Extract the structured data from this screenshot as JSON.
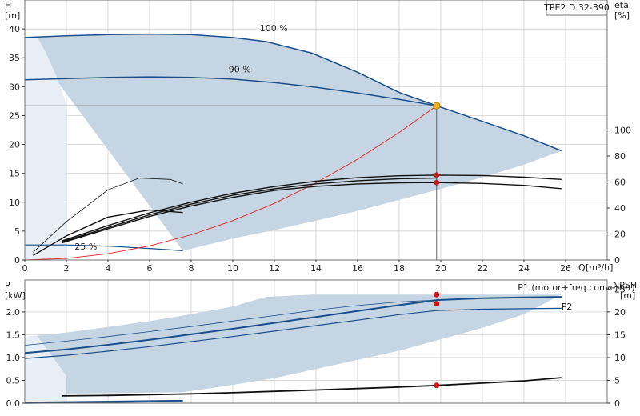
{
  "product_label": "TPE2 D 32-390",
  "colors": {
    "band": "#c6d5e3",
    "band_light": "#e7eef6",
    "pump_curve": "#1b4f8a",
    "black_curve": "#111111",
    "system_curve": "#e02020",
    "operating_point": "#f2b51c",
    "marker": "#e01010"
  },
  "chart_data": [
    {
      "type": "line",
      "name": "head_eta",
      "axis_labels": {
        "left_name": "H",
        "left_unit": "[m]",
        "right_name": "eta",
        "right_unit": "[%]",
        "x_name": "Q",
        "x_unit": "[m³/h]"
      },
      "xlim": [
        0,
        28
      ],
      "ylim": [
        0,
        45
      ],
      "y2lim": [
        0,
        200
      ],
      "x_ticks": [
        0,
        2,
        4,
        6,
        8,
        10,
        12,
        14,
        16,
        18,
        20,
        22,
        24,
        26
      ],
      "y_ticks": [
        0,
        5,
        10,
        15,
        20,
        25,
        30,
        35,
        40
      ],
      "y2_ticks": [
        0,
        20,
        40,
        60,
        80,
        100
      ],
      "curve_labels": [
        {
          "text": "100 %",
          "x": 11.3,
          "y": 39.6
        },
        {
          "text": "90 %",
          "x": 9.8,
          "y": 32.5
        },
        {
          "text": "25 %",
          "x": 2.4,
          "y": 1.8
        }
      ],
      "series": [
        {
          "name": "100 %",
          "role": "head",
          "x": [
            0,
            2,
            4,
            6,
            8,
            10,
            11.6,
            13.8,
            16,
            18,
            19.8,
            22,
            24,
            25.8
          ],
          "y": [
            38.5,
            38.8,
            39.0,
            39.1,
            39.0,
            38.5,
            37.8,
            35.8,
            32.5,
            29.0,
            26.7,
            24.0,
            21.5,
            18.9
          ]
        },
        {
          "name": "90 %",
          "role": "head",
          "x": [
            0,
            2,
            4,
            6,
            8,
            10,
            12,
            14,
            16,
            18,
            19.8
          ],
          "y": [
            31.2,
            31.4,
            31.6,
            31.7,
            31.6,
            31.3,
            30.7,
            29.9,
            28.9,
            27.8,
            26.7
          ]
        },
        {
          "name": "25 %",
          "role": "head",
          "x": [
            0,
            2,
            4,
            6,
            7.6
          ],
          "y": [
            2.6,
            2.6,
            2.4,
            2.0,
            1.6
          ]
        },
        {
          "name": "system",
          "role": "system",
          "x": [
            0,
            2,
            4,
            6,
            8,
            10,
            12,
            14,
            16,
            18,
            19.8
          ],
          "y": [
            0,
            0.27,
            1.09,
            2.45,
            4.36,
            6.81,
            9.81,
            13.35,
            17.44,
            22.07,
            26.7
          ]
        },
        {
          "name": "eta 100 %",
          "role": "eta",
          "x": [
            1.8,
            4,
            6,
            8,
            10,
            12,
            14,
            16,
            18,
            19.8,
            22,
            24,
            25.8
          ],
          "y": [
            14.7,
            26.5,
            36.3,
            44.5,
            51.3,
            56.5,
            60.6,
            63.3,
            64.8,
            65.3,
            65.0,
            63.7,
            62.0
          ]
        },
        {
          "name": "eta 90 %",
          "role": "eta",
          "x": [
            1.8,
            4,
            6,
            8,
            10,
            12,
            14,
            16,
            18,
            19.8
          ],
          "y": [
            14.0,
            25.0,
            34.8,
            43.0,
            49.8,
            54.8,
            58.6,
            61.0,
            62.5,
            63.0
          ]
        },
        {
          "name": "eta system",
          "role": "eta",
          "x": [
            1.8,
            4,
            6,
            8,
            10,
            12,
            14,
            16,
            18,
            19.8,
            22,
            24,
            25.8
          ],
          "y": [
            13.3,
            24.0,
            33.5,
            41.6,
            48.2,
            53.5,
            56.7,
            58.5,
            59.4,
            59.6,
            58.9,
            57.4,
            54.9
          ]
        },
        {
          "name": "eta low 1",
          "role": "eta_thin",
          "x": [
            0.4,
            2,
            4,
            5.5,
            7,
            7.6
          ],
          "y": [
            6.0,
            29.5,
            54.0,
            63.0,
            62.0,
            58.5
          ]
        },
        {
          "name": "eta low 2",
          "role": "eta",
          "x": [
            0.4,
            2,
            4,
            6,
            7.6
          ],
          "y": [
            3.5,
            18.5,
            33.0,
            38.5,
            36.5
          ]
        }
      ],
      "operating_point": {
        "x": 19.8,
        "y": 26.7
      },
      "markers": [
        {
          "x": 19.8,
          "y": 65.3,
          "axis": "eta"
        },
        {
          "x": 19.8,
          "y": 59.6,
          "axis": "eta"
        }
      ],
      "band_upper": {
        "x": [
          0,
          2,
          4,
          6,
          8,
          10,
          11.6,
          13.8,
          16,
          18,
          19.8,
          22,
          24,
          25.8
        ],
        "y": [
          38.5,
          38.8,
          39.0,
          39.1,
          39.0,
          38.5,
          37.8,
          35.8,
          32.5,
          29.0,
          26.7,
          24.0,
          21.5,
          18.9
        ]
      },
      "band_lower": {
        "x": [
          7.6,
          10,
          12,
          14,
          16,
          18,
          20,
          22,
          24,
          25.8
        ],
        "y": [
          1.6,
          3.7,
          5.2,
          6.8,
          8.5,
          10.4,
          12.3,
          14.3,
          16.5,
          18.9
        ]
      },
      "band_light": {
        "x": [
          0,
          0.6,
          1.0,
          1.5,
          2.0,
          2.0,
          0
        ],
        "y": [
          38.5,
          38.6,
          36.0,
          32.0,
          27.0,
          0,
          0
        ]
      }
    },
    {
      "type": "line",
      "name": "power_npsh",
      "axis_labels": {
        "left_name": "P",
        "left_unit": "[kW]",
        "right_name": "NPSH",
        "right_unit": "[m]"
      },
      "xlim": [
        0,
        28
      ],
      "ylim": [
        0,
        2.7
      ],
      "y2lim": [
        0,
        27
      ],
      "y_ticks": [
        0,
        0.5,
        1.0,
        1.5,
        2.0
      ],
      "y_tick_labels": [
        "0.0",
        "0.5",
        "1.0",
        "1.5",
        "2.0"
      ],
      "y2_ticks": [
        0,
        5,
        10,
        15,
        20,
        25
      ],
      "curve_labels": [
        {
          "text": "P1 (motor+freq.converter)",
          "x": 23.7,
          "y": 2.47
        },
        {
          "text": "P2",
          "x": 25.8,
          "y": 2.05
        }
      ],
      "series": [
        {
          "name": "P1 (motor+freq.converter)",
          "role": "power_bold",
          "x": [
            0,
            2,
            4,
            6,
            8,
            10,
            12,
            14,
            16,
            18,
            19.8,
            22,
            24,
            25.8
          ],
          "y": [
            1.1,
            1.18,
            1.28,
            1.39,
            1.51,
            1.63,
            1.76,
            1.89,
            2.02,
            2.15,
            2.26,
            2.3,
            2.32,
            2.33
          ]
        },
        {
          "name": "P2",
          "role": "power",
          "x": [
            0,
            2,
            4,
            6,
            8,
            10,
            12,
            14,
            16,
            18,
            19.8,
            22,
            24,
            25.8
          ],
          "y": [
            0.98,
            1.05,
            1.14,
            1.24,
            1.35,
            1.46,
            1.58,
            1.7,
            1.82,
            1.94,
            2.03,
            2.06,
            2.07,
            2.08
          ]
        },
        {
          "name": "P1 90 %",
          "role": "power_thin",
          "x": [
            0,
            2,
            4,
            6,
            8,
            10,
            12,
            14,
            16,
            18,
            19.8
          ],
          "y": [
            1.27,
            1.36,
            1.46,
            1.57,
            1.68,
            1.8,
            1.92,
            2.04,
            2.14,
            2.22,
            2.26
          ]
        },
        {
          "name": "P1 low",
          "role": "power_low",
          "x": [
            0,
            2,
            4,
            6,
            7.6
          ],
          "y": [
            0.02,
            0.03,
            0.04,
            0.05,
            0.06
          ]
        },
        {
          "name": "P2 low",
          "role": "power_low",
          "x": [
            0,
            2,
            4,
            6,
            7.6
          ],
          "y": [
            0.0,
            0.01,
            0.02,
            0.03,
            0.04
          ]
        },
        {
          "name": "NPSH",
          "role": "npsh",
          "x": [
            1.8,
            4,
            6,
            8,
            10,
            12,
            14,
            16,
            18,
            19.8,
            22,
            24,
            25.8
          ],
          "y": [
            1.6,
            1.7,
            1.85,
            2.05,
            2.3,
            2.6,
            2.9,
            3.2,
            3.55,
            3.9,
            4.4,
            4.9,
            5.6
          ]
        }
      ],
      "markers": [
        {
          "x": 19.8,
          "y": 2.38,
          "axis": "power"
        },
        {
          "x": 19.8,
          "y": 2.18,
          "axis": "power"
        },
        {
          "x": 19.8,
          "y": 3.9,
          "axis": "npsh"
        }
      ],
      "band_upper": {
        "x": [
          0,
          2,
          4,
          6,
          8,
          10,
          11.6,
          13.8,
          16,
          18,
          19.8,
          22,
          24,
          25.8
        ],
        "y": [
          1.45,
          1.55,
          1.67,
          1.8,
          1.95,
          2.12,
          2.33,
          2.38,
          2.38,
          2.38,
          2.38,
          2.38,
          2.38,
          2.38
        ]
      },
      "band_lower": {
        "x": [
          0,
          2,
          4,
          6,
          7.6,
          10,
          12,
          14,
          16,
          18,
          20,
          22,
          24,
          25.8
        ],
        "y": [
          0.2,
          0.21,
          0.22,
          0.23,
          0.24,
          0.4,
          0.55,
          0.75,
          0.95,
          1.15,
          1.4,
          1.65,
          1.95,
          2.38
        ]
      },
      "band_light": {
        "x": [
          0,
          0.6,
          1.2,
          2.0,
          2.0,
          0
        ],
        "y": [
          1.45,
          1.47,
          1.1,
          0.6,
          0,
          0
        ]
      }
    }
  ]
}
